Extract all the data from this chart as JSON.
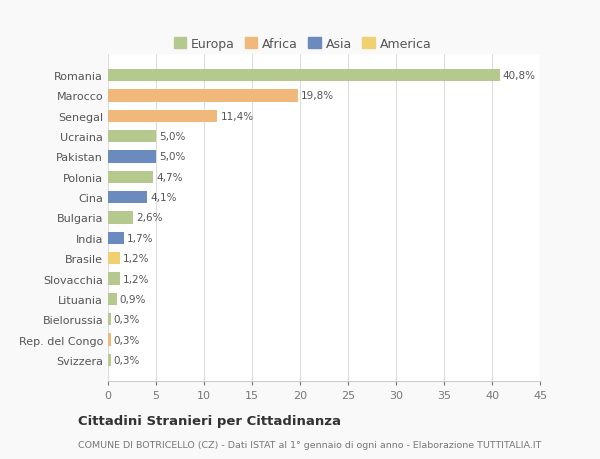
{
  "countries": [
    "Romania",
    "Marocco",
    "Senegal",
    "Ucraina",
    "Pakistan",
    "Polonia",
    "Cina",
    "Bulgaria",
    "India",
    "Brasile",
    "Slovacchia",
    "Lituania",
    "Bielorussia",
    "Rep. del Congo",
    "Svizzera"
  ],
  "values": [
    40.8,
    19.8,
    11.4,
    5.0,
    5.0,
    4.7,
    4.1,
    2.6,
    1.7,
    1.2,
    1.2,
    0.9,
    0.3,
    0.3,
    0.3
  ],
  "labels": [
    "40,8%",
    "19,8%",
    "11,4%",
    "5,0%",
    "5,0%",
    "4,7%",
    "4,1%",
    "2,6%",
    "1,7%",
    "1,2%",
    "1,2%",
    "0,9%",
    "0,3%",
    "0,3%",
    "0,3%"
  ],
  "colors": [
    "#b5c98e",
    "#f0b87a",
    "#f0b87a",
    "#b5c98e",
    "#6b8bbf",
    "#b5c98e",
    "#6b8bbf",
    "#b5c98e",
    "#6b8bbf",
    "#f0d070",
    "#b5c98e",
    "#b5c98e",
    "#b5c98e",
    "#f0b87a",
    "#b5c98e"
  ],
  "legend_labels": [
    "Europa",
    "Africa",
    "Asia",
    "America"
  ],
  "legend_colors": [
    "#b5c98e",
    "#f0b87a",
    "#6b8bbf",
    "#f0d070"
  ],
  "xlim": [
    0,
    45
  ],
  "xticks": [
    0,
    5,
    10,
    15,
    20,
    25,
    30,
    35,
    40,
    45
  ],
  "title": "Cittadini Stranieri per Cittadinanza",
  "subtitle": "COMUNE DI BOTRICELLO (CZ) - Dati ISTAT al 1° gennaio di ogni anno - Elaborazione TUTTITALIA.IT",
  "bg_color": "#f9f9f9",
  "bar_bg_color": "#ffffff",
  "grid_color": "#dddddd"
}
